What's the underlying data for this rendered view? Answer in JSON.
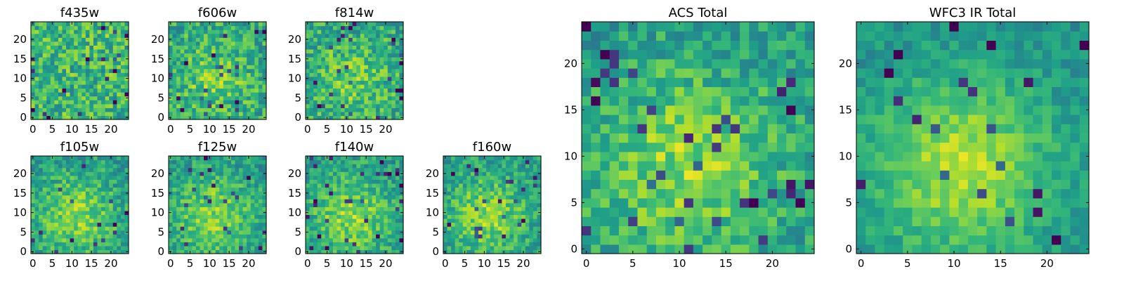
{
  "chart_data": [
    {
      "type": "heatmap",
      "title": "f435w",
      "xticks": [
        0,
        5,
        10,
        15,
        20
      ],
      "yticks": [
        0,
        5,
        10,
        15,
        20
      ],
      "xlim": [
        -0.5,
        24.5
      ],
      "ylim": [
        -0.5,
        24.5
      ],
      "grid_size": 25,
      "pattern": "noise",
      "colormap": "viridis"
    },
    {
      "type": "heatmap",
      "title": "f606w",
      "xticks": [
        0,
        5,
        10,
        15,
        20
      ],
      "yticks": [
        0,
        5,
        10,
        15,
        20
      ],
      "xlim": [
        -0.5,
        24.5
      ],
      "ylim": [
        -0.5,
        24.5
      ],
      "grid_size": 25,
      "pattern": "weak-center",
      "colormap": "viridis"
    },
    {
      "type": "heatmap",
      "title": "f814w",
      "xticks": [
        0,
        5,
        10,
        15,
        20
      ],
      "yticks": [
        0,
        5,
        10,
        15,
        20
      ],
      "xlim": [
        -0.5,
        24.5
      ],
      "ylim": [
        -0.5,
        24.5
      ],
      "grid_size": 25,
      "pattern": "weak-center",
      "colormap": "viridis"
    },
    {
      "type": "heatmap",
      "title": "f105w",
      "xticks": [
        0,
        5,
        10,
        15,
        20
      ],
      "yticks": [
        0,
        5,
        10,
        15,
        20
      ],
      "xlim": [
        -0.5,
        24.5
      ],
      "ylim": [
        -0.5,
        24.5
      ],
      "grid_size": 25,
      "pattern": "center",
      "colormap": "viridis"
    },
    {
      "type": "heatmap",
      "title": "f125w",
      "xticks": [
        0,
        5,
        10,
        15,
        20
      ],
      "yticks": [
        0,
        5,
        10,
        15,
        20
      ],
      "xlim": [
        -0.5,
        24.5
      ],
      "ylim": [
        -0.5,
        24.5
      ],
      "grid_size": 25,
      "pattern": "center",
      "colormap": "viridis"
    },
    {
      "type": "heatmap",
      "title": "f140w",
      "xticks": [
        0,
        5,
        10,
        15,
        20
      ],
      "yticks": [
        0,
        5,
        10,
        15,
        20
      ],
      "xlim": [
        -0.5,
        24.5
      ],
      "ylim": [
        -0.5,
        24.5
      ],
      "grid_size": 25,
      "pattern": "center",
      "colormap": "viridis"
    },
    {
      "type": "heatmap",
      "title": "f160w",
      "xticks": [
        0,
        5,
        10,
        15,
        20
      ],
      "yticks": [
        0,
        5,
        10,
        15,
        20
      ],
      "xlim": [
        -0.5,
        24.5
      ],
      "ylim": [
        -0.5,
        24.5
      ],
      "grid_size": 25,
      "pattern": "center",
      "colormap": "viridis"
    },
    {
      "type": "heatmap",
      "title": "ACS Total",
      "xticks": [
        0,
        5,
        10,
        15,
        20
      ],
      "yticks": [
        0,
        5,
        10,
        15,
        20
      ],
      "xlim": [
        -0.5,
        24.5
      ],
      "ylim": [
        -0.5,
        24.5
      ],
      "grid_size": 25,
      "pattern": "center",
      "colormap": "viridis"
    },
    {
      "type": "heatmap",
      "title": "WFC3 IR Total",
      "xticks": [
        0,
        5,
        10,
        15,
        20
      ],
      "yticks": [
        0,
        5,
        10,
        15,
        20
      ],
      "xlim": [
        -0.5,
        24.5
      ],
      "ylim": [
        -0.5,
        24.5
      ],
      "grid_size": 25,
      "pattern": "strong-center",
      "colormap": "viridis"
    }
  ]
}
